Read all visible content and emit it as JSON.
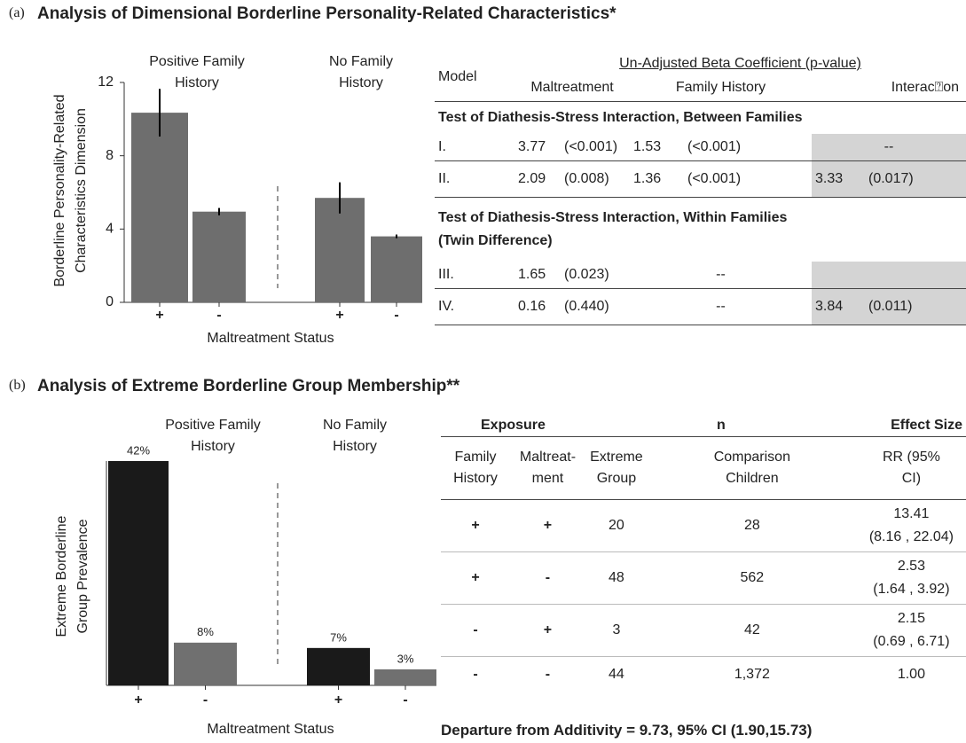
{
  "panel_a": {
    "label": "(a)",
    "title": "Analysis of Dimensional Borderline Personality-Related Characteristics*",
    "table": {
      "model_header": "Model",
      "header": "Un-Adjusted Beta Coefficient  (p-value)",
      "columns": [
        "Maltreatment",
        "Family History",
        "Interac⍰on"
      ],
      "sections": [
        {
          "title_lines": [
            "Test of Diathesis-Stress Interaction, Between Families"
          ],
          "rows": [
            {
              "model": "I.",
              "maltreatment": [
                "3.77",
                "(<0.001)"
              ],
              "family_history": [
                "1.53",
                "(<0.001)"
              ],
              "interaction": "--"
            },
            {
              "model": "II.",
              "maltreatment": [
                "2.09",
                "(0.008)"
              ],
              "family_history": [
                "1.36",
                "(<0.001)"
              ],
              "interaction": [
                "3.33",
                "(0.017)"
              ]
            }
          ]
        },
        {
          "title_lines": [
            "Test of Diathesis-Stress Interaction, Within Families",
            "(Twin Difference)"
          ],
          "rows": [
            {
              "model": "III.",
              "maltreatment": [
                "1.65",
                "(0.023)"
              ],
              "family_history": "--"
            },
            {
              "model": "IV.",
              "maltreatment": [
                "0.16",
                "(0.440)"
              ],
              "family_history": "--",
              "interaction": [
                "3.84",
                "(0.011)"
              ]
            }
          ]
        }
      ]
    }
  },
  "panel_b": {
    "label": "(b)",
    "title": "Analysis of Extreme Borderline Group Membership**",
    "table": {
      "header": [
        "Exposure",
        "n",
        "Effect Size"
      ],
      "columns": [
        "Family History",
        "Maltreat-ment",
        "Extreme Group",
        "Comparison Children",
        "RR (95% CI)"
      ],
      "rows": [
        {
          "family_history": "+",
          "maltreatment": "+",
          "extreme": "20",
          "comparison": "28",
          "rr": "13.41",
          "ci": "(8.16 , 22.04)"
        },
        {
          "family_history": "+",
          "maltreatment": "-",
          "extreme": "48",
          "comparison": "562",
          "rr": "2.53",
          "ci": "(1.64 , 3.92)"
        },
        {
          "family_history": "-",
          "maltreatment": "+",
          "extreme": "3",
          "comparison": "42",
          "rr": "2.15",
          "ci": "(0.69 , 6.71)"
        },
        {
          "family_history": "-",
          "maltreatment": "-",
          "extreme": "44",
          "comparison": "1,372",
          "rr": "1.00"
        }
      ],
      "footer": "Departure from Additivity = 9.73, 95% CI (1.90,15.73)"
    }
  },
  "chart_data": [
    {
      "type": "bar",
      "categories": [
        "+",
        "-",
        "+",
        "-"
      ],
      "groups": [
        "Positive Family History",
        "No Family History"
      ],
      "values": [
        10.35,
        4.95,
        5.7,
        3.6
      ],
      "errors": [
        1.3,
        0.2,
        0.85,
        0.1
      ],
      "color": "#6e6e6e",
      "ylim": [
        0,
        12
      ],
      "yticks": [
        0,
        4,
        8,
        12
      ],
      "xlabel": "Maltreatment Status",
      "ylabel": "Borderline Personality-Related Characteristics Dimension"
    },
    {
      "type": "bar",
      "categories": [
        "+",
        "-",
        "+",
        "-"
      ],
      "groups": [
        "Positive Family History",
        "No Family History"
      ],
      "values": [
        42,
        8,
        7,
        3
      ],
      "value_labels": [
        "42%",
        "8%",
        "7%",
        "3%"
      ],
      "colors": [
        "#1a1a1a",
        "#707070",
        "#1a1a1a",
        "#707070"
      ],
      "ylim": [
        0,
        42
      ],
      "xlabel": "Maltreatment Status",
      "ylabel": "Extreme Borderline Group Prevalence"
    }
  ]
}
